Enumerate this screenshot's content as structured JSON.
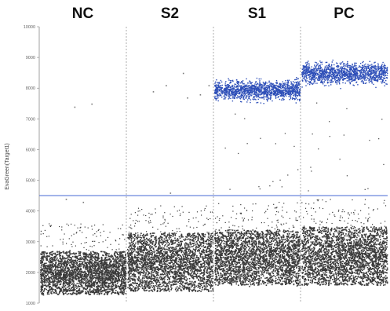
{
  "chart_data": {
    "type": "scatter",
    "title": "",
    "ylabel": "EvaGreen(Target1)",
    "xlabel": "",
    "ylim": [
      1000,
      10000
    ],
    "y_ticks": [
      "1000",
      "2000",
      "3000",
      "4000",
      "5000",
      "6000",
      "7000",
      "8000",
      "9000",
      "10000"
    ],
    "y_tick_values": [
      1000,
      2000,
      3000,
      4000,
      5000,
      6000,
      7000,
      8000,
      9000,
      10000
    ],
    "threshold": 4500,
    "grid": false,
    "legend": "none",
    "colors": {
      "negative": "#3a3a3a",
      "positive": "#2e4fb8",
      "threshold": "#5a78d8",
      "divider": "#999999",
      "axis": "#888888"
    },
    "samples": [
      {
        "name": "NC",
        "negative_range": [
          1300,
          2700
        ],
        "positive_range": null,
        "stray_points": [
          [
            0.4,
            7400
          ],
          [
            0.6,
            7500
          ],
          [
            0.3,
            4400
          ],
          [
            0.5,
            4300
          ]
        ]
      },
      {
        "name": "S2",
        "negative_range": [
          1400,
          3300
        ],
        "positive_range": null,
        "stray_points": [
          [
            0.3,
            7900
          ],
          [
            0.45,
            8100
          ],
          [
            0.65,
            8500
          ],
          [
            0.85,
            7800
          ],
          [
            0.95,
            8100
          ],
          [
            0.7,
            7700
          ],
          [
            0.5,
            4600
          ]
        ]
      },
      {
        "name": "S1",
        "negative_range": [
          1600,
          3400
        ],
        "positive_range": [
          7500,
          8400
        ],
        "stray_points": []
      },
      {
        "name": "PC",
        "negative_range": [
          1600,
          3500
        ],
        "positive_range": [
          8000,
          9000
        ],
        "stray_points": []
      }
    ]
  }
}
